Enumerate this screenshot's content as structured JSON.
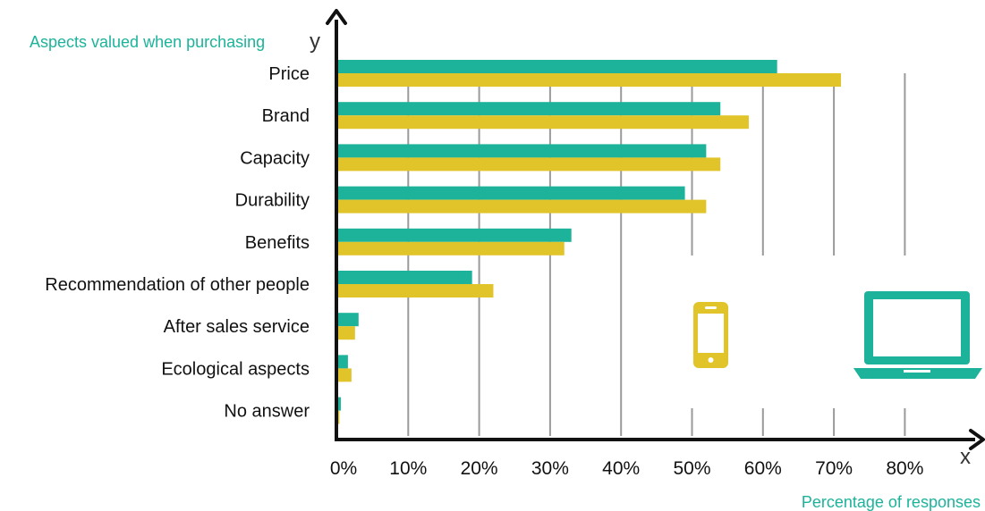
{
  "chart_data": {
    "type": "bar",
    "orientation": "horizontal",
    "categories": [
      "Price",
      "Brand",
      "Capacity",
      "Durability",
      "Benefits",
      "Recommendation of other people",
      "After sales service",
      "Ecological aspects",
      "No answer"
    ],
    "series": [
      {
        "values": [
          62,
          54,
          52,
          49,
          33,
          19,
          3,
          1.5,
          0.5
        ],
        "color": "#1db39a"
      },
      {
        "values": [
          71,
          58,
          54,
          52,
          32,
          22,
          2.5,
          2,
          0.3
        ],
        "color": "#e1c42a"
      }
    ],
    "x_ticks": [
      "0%",
      "10%",
      "20%",
      "30%",
      "40%",
      "50%",
      "60%",
      "70%",
      "80%"
    ],
    "xlim": [
      0,
      90
    ],
    "ylabel": "Aspects valued when purchasing",
    "xlabel": "Percentage of responses",
    "y_axis_letter": "y",
    "x_axis_letter": "x",
    "grid": true,
    "title_color": "#1db39a",
    "icons": [
      {
        "name": "smartphone-icon",
        "color": "#e1c42a"
      },
      {
        "name": "laptop-icon",
        "color": "#1db39a"
      }
    ]
  }
}
